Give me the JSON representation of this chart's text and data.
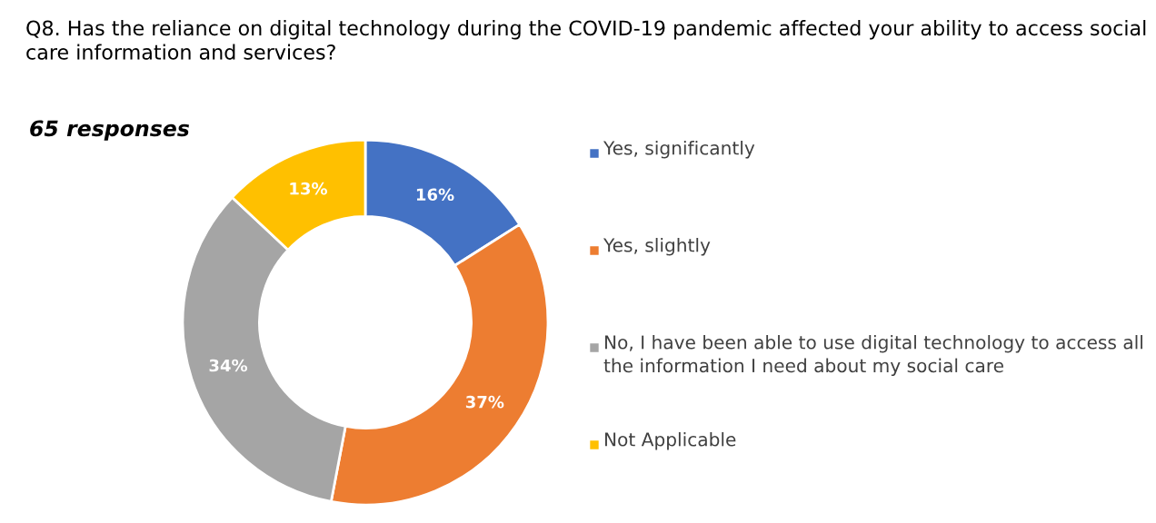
{
  "chart_data": {
    "type": "donut",
    "title": "Q8. Has the reliance on digital technology during the COVID-19 pandemic affected your ability to access social care information and services?",
    "subtitle": "65 responses",
    "categories": [
      "Yes, significantly",
      "Yes, slightly",
      "No, I have been able to use digital technology to access all the information I need about my social care",
      "Not Applicable"
    ],
    "values": [
      16,
      37,
      34,
      13
    ],
    "colors": [
      "#4472c4",
      "#ed7d31",
      "#a5a5a5",
      "#ffc000"
    ],
    "value_labels": [
      "16%",
      "37%",
      "34%",
      "13%"
    ],
    "legend": "right"
  }
}
